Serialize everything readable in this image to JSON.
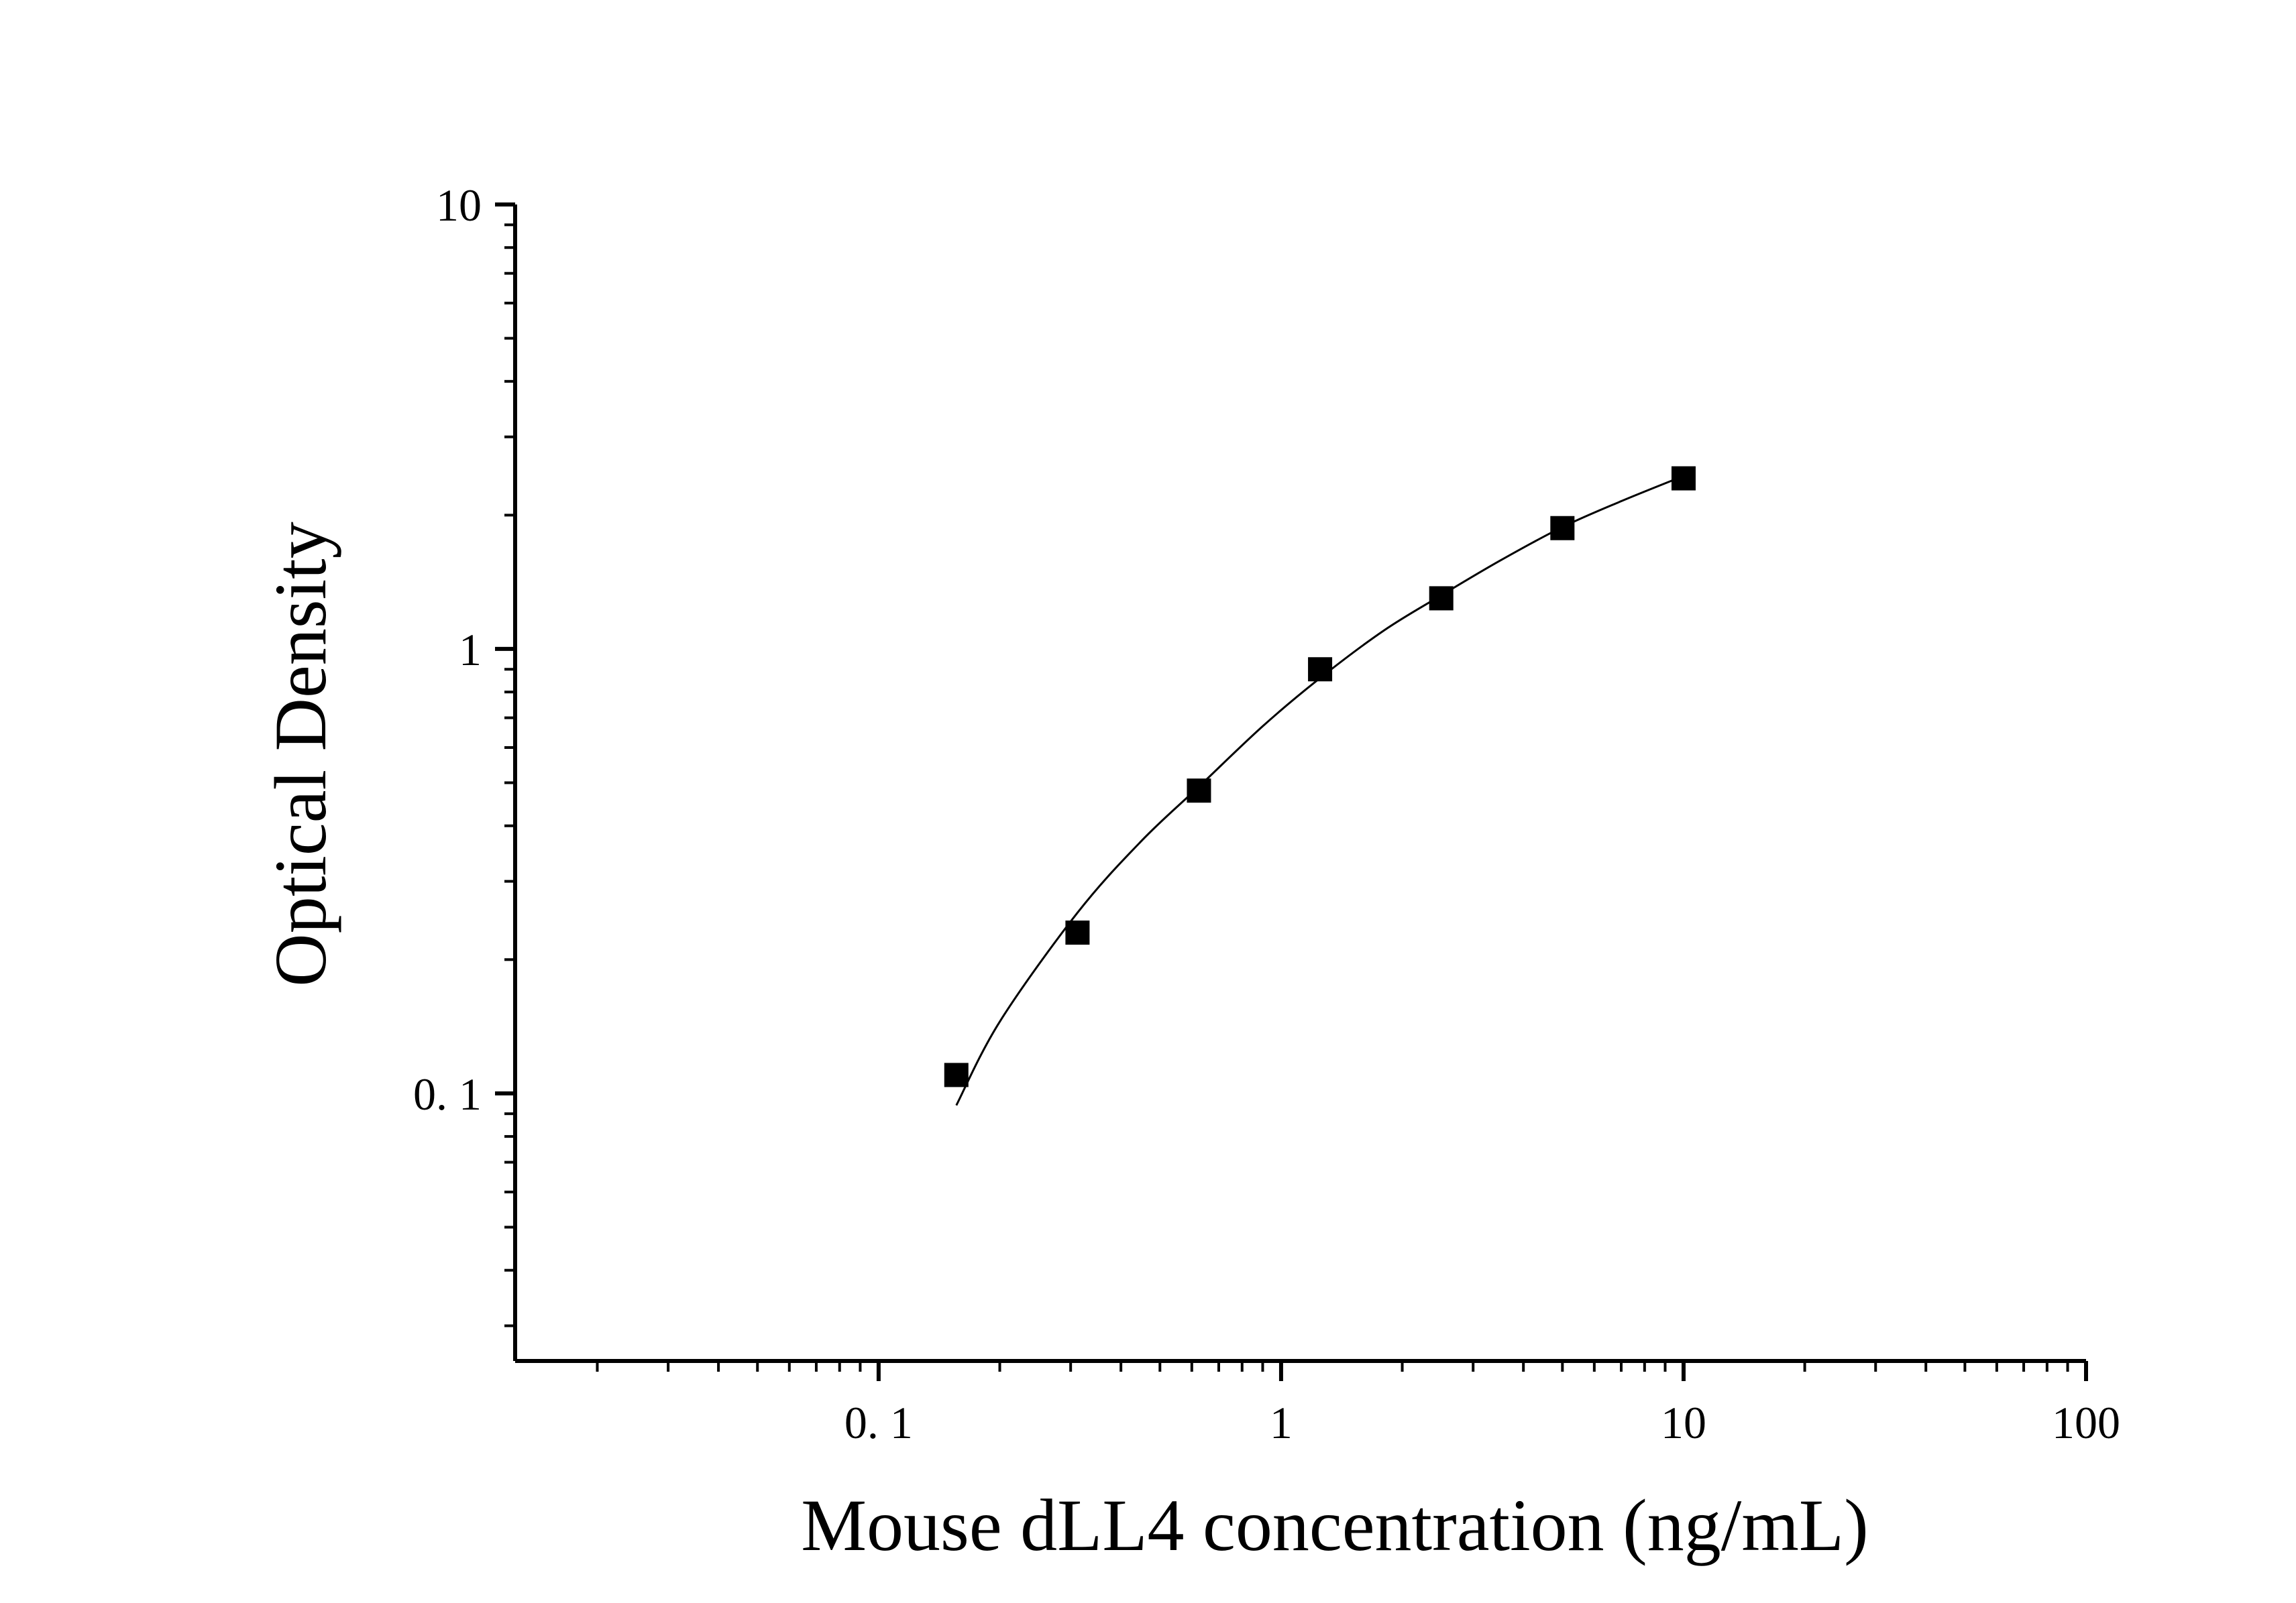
{
  "chart_data": {
    "type": "scatter",
    "title": "",
    "xlabel": "Mouse dLL4 concentration (ng/mL)",
    "ylabel": "Optical Density",
    "x_scale": "log",
    "y_scale": "log",
    "xlim": [
      0.0125,
      100
    ],
    "ylim": [
      0.025,
      10
    ],
    "x_ticks": [
      {
        "value": 0.1,
        "label": "0. 1"
      },
      {
        "value": 1,
        "label": "1"
      },
      {
        "value": 10,
        "label": "10"
      },
      {
        "value": 100,
        "label": "100"
      }
    ],
    "y_ticks": [
      {
        "value": 0.1,
        "label": "0. 1"
      },
      {
        "value": 1,
        "label": "1"
      },
      {
        "value": 10,
        "label": "10"
      }
    ],
    "grid": false,
    "legend": "none",
    "series": [
      {
        "marker": "square",
        "color": "#000000",
        "points": [
          {
            "x": 0.156,
            "y": 0.11
          },
          {
            "x": 0.312,
            "y": 0.23
          },
          {
            "x": 0.625,
            "y": 0.48
          },
          {
            "x": 1.25,
            "y": 0.9
          },
          {
            "x": 2.5,
            "y": 1.3
          },
          {
            "x": 5,
            "y": 1.87
          },
          {
            "x": 10,
            "y": 2.42
          }
        ]
      }
    ],
    "fit_curve": {
      "color": "#000000",
      "points": [
        {
          "x": 0.156,
          "y": 0.094
        },
        {
          "x": 0.2,
          "y": 0.145
        },
        {
          "x": 0.312,
          "y": 0.255
        },
        {
          "x": 0.45,
          "y": 0.37
        },
        {
          "x": 0.625,
          "y": 0.49
        },
        {
          "x": 0.9,
          "y": 0.67
        },
        {
          "x": 1.25,
          "y": 0.86
        },
        {
          "x": 1.8,
          "y": 1.1
        },
        {
          "x": 2.5,
          "y": 1.32
        },
        {
          "x": 3.5,
          "y": 1.58
        },
        {
          "x": 5,
          "y": 1.88
        },
        {
          "x": 7,
          "y": 2.15
        },
        {
          "x": 10,
          "y": 2.45
        }
      ]
    }
  }
}
